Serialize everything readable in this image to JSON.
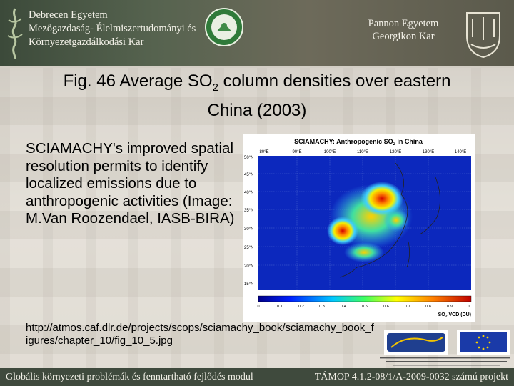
{
  "header": {
    "left_lines": [
      "Debrecen Egyetem",
      "Mezőgazdaság- Élelmiszertudományi és",
      "Környezetgazdálkodási Kar"
    ],
    "right_lines": [
      "Pannon Egyetem",
      "Georgikon Kar"
    ]
  },
  "title": {
    "text_before": "Fig. 46 Average SO",
    "subscript": "2",
    "text_after": " column densities over eastern China (2003)"
  },
  "body": {
    "text": "SCIAMACHY's improved spatial resolution permits to identify localized emissions due to anthropogenic activities (Image: M.Van Roozendael, IASB-BIRA)"
  },
  "map": {
    "title_before": "SCIAMACHY: Anthropogenic SO",
    "title_sub": "2",
    "title_after": " in China",
    "lon_labels": [
      "80°E",
      "90°E",
      "100°E",
      "110°E",
      "120°E",
      "130°E",
      "140°E"
    ],
    "lat_labels": [
      "50°N",
      "45°N",
      "40°N",
      "35°N",
      "30°N",
      "25°N",
      "20°N",
      "15°N"
    ],
    "scale_labels": [
      "0",
      "0.1",
      "0.2",
      "0.3",
      "0.4",
      "0.5",
      "0.6",
      "0.7",
      "0.8",
      "0.9",
      "1"
    ],
    "unit_before": "SO",
    "unit_sub": "2",
    "unit_after": " VCD (DU)"
  },
  "url": {
    "text": "http://atmos.caf.dlr.de/projects/scops/sciamachy_book/sciamachy_book_figures/chapter_10/fig_10_5.jpg"
  },
  "footer": {
    "left": "Globális környezeti problémák és fenntartható fejlődés modul",
    "right": "TÁMOP 4.1.2-08/1/A-2009-0032 számú projekt"
  }
}
